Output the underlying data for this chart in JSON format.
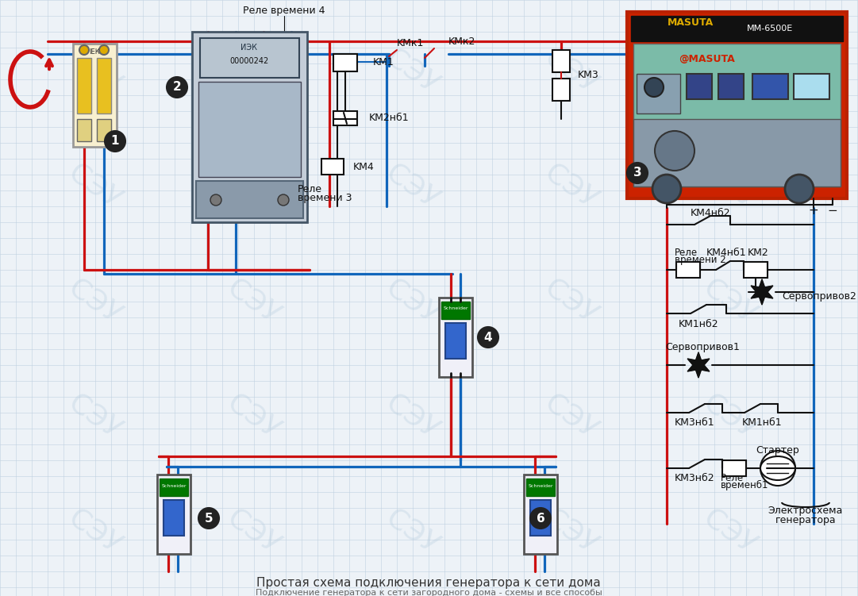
{
  "bg_color": "#edf2f7",
  "grid_color": "#c0d0e0",
  "wire_red": "#cc1111",
  "wire_blue": "#1166bb",
  "black": "#111111",
  "circle_bg": "#222222",
  "circle_fg": "#ffffff",
  "title": "Простая схема подключения генератора к сети дома",
  "subtitle": "Подключение генератора к сети загородного дома - схемы и все способы",
  "lbl_rele4": "Реле времени 4",
  "lbl_km1": "KM1",
  "lbl_kmk1": "KMк1",
  "lbl_kmk2": "KMк2",
  "lbl_km3": "KM3",
  "lbl_km2nz1": "KM2нб1",
  "lbl_km4": "KM4",
  "lbl_rele3_1": "Реле",
  "lbl_rele3_2": "времени 3",
  "lbl_km4nz2": "KM4нб2",
  "lbl_rele2_1": "Реле",
  "lbl_rele2_2": "времени 2",
  "lbl_km4nz1": "KM4нб1",
  "lbl_km2": "KM2",
  "lbl_km1nz2": "KM1нб2",
  "lbl_servo2": "Сервопривов2",
  "lbl_servo1": "Сервопривов1",
  "lbl_km3nz1": "KM3нб1",
  "lbl_km1nz1": "KM1нб1",
  "lbl_km3nz2": "KM3нб2",
  "lbl_rele1_1": "Реле",
  "lbl_rele1_2": "временб1",
  "lbl_starter": "Стартер",
  "lbl_electro1": "Электросхема",
  "lbl_electro2": "генератора",
  "lbl_plus": "+",
  "lbl_minus": "−",
  "watermark": "СЭУ"
}
